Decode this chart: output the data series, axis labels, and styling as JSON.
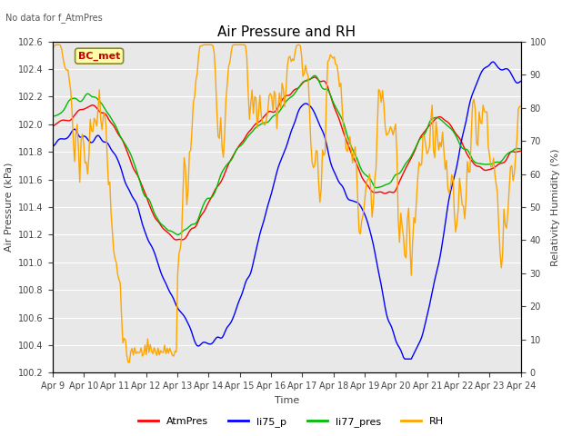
{
  "title": "Air Pressure and RH",
  "subtitle": "No data for f_AtmPres",
  "xlabel": "Time",
  "ylabel_left": "Air Pressure (kPa)",
  "ylabel_right": "Relativity Humidity (%)",
  "annotation": "BC_met",
  "ylim_left": [
    100.2,
    102.6
  ],
  "ylim_right": [
    0,
    100
  ],
  "yticks_left": [
    100.2,
    100.4,
    100.6,
    100.8,
    101.0,
    101.2,
    101.4,
    101.6,
    101.8,
    102.0,
    102.2,
    102.4,
    102.6
  ],
  "yticks_right": [
    0,
    10,
    20,
    30,
    40,
    50,
    60,
    70,
    80,
    90,
    100
  ],
  "xtick_labels": [
    "Apr 9",
    "Apr 10",
    "Apr 11",
    "Apr 12",
    "Apr 13",
    "Apr 14",
    "Apr 15",
    "Apr 16",
    "Apr 17",
    "Apr 18",
    "Apr 19",
    "Apr 20",
    "Apr 21",
    "Apr 22",
    "Apr 23",
    "Apr 24"
  ],
  "colors": {
    "AtmPres": "#ff0000",
    "li75_p": "#0000ff",
    "li77_pres": "#00bb00",
    "RH": "#ffa500"
  },
  "legend_labels": [
    "AtmPres",
    "li75_p",
    "li77_pres",
    "RH"
  ],
  "bg_outer": "#dcdcdc",
  "bg_inner": "#e8e8e8",
  "linewidth": 1.0,
  "title_fontsize": 11,
  "label_fontsize": 8,
  "tick_fontsize": 7,
  "legend_fontsize": 8
}
